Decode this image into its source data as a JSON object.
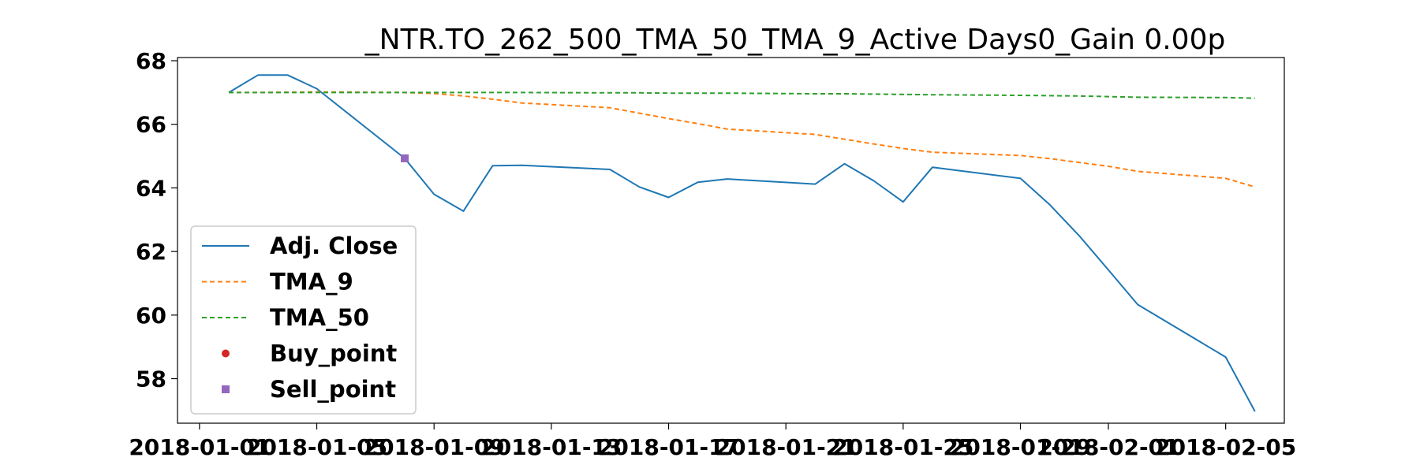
{
  "chart_data": {
    "type": "line",
    "title": "_NTR.TO_262_500_TMA_50_TMA_9_Active Days0_Gain   0.00p",
    "xlabel": "",
    "ylabel": "",
    "x_ticks": [
      "2018-01-01",
      "2018-01-05",
      "2018-01-09",
      "2018-01-13",
      "2018-01-17",
      "2018-01-21",
      "2018-01-25",
      "2018-01-29",
      "2018-02-01",
      "2018-02-05"
    ],
    "y_ticks": [
      "58",
      "60",
      "62",
      "64",
      "66",
      "68"
    ],
    "xlim": [
      "2017-12-31T06:00",
      "2018-02-07"
    ],
    "ylim": [
      56.6,
      68.1
    ],
    "grid": false,
    "legend_position": "lower-left",
    "x": [
      "2018-01-02",
      "2018-01-03",
      "2018-01-04",
      "2018-01-05",
      "2018-01-08",
      "2018-01-09",
      "2018-01-10",
      "2018-01-11",
      "2018-01-12",
      "2018-01-15",
      "2018-01-16",
      "2018-01-17",
      "2018-01-18",
      "2018-01-19",
      "2018-01-22",
      "2018-01-23",
      "2018-01-24",
      "2018-01-25",
      "2018-01-26",
      "2018-01-29",
      "2018-01-30",
      "2018-01-31",
      "2018-02-01",
      "2018-02-02",
      "2018-02-05",
      "2018-02-06"
    ],
    "series": [
      {
        "name": "Adj. Close",
        "color": "#1f77b4",
        "dash": "solid",
        "values": [
          67.0,
          67.55,
          67.55,
          67.12,
          64.93,
          63.8,
          63.27,
          64.7,
          64.71,
          64.58,
          64.03,
          63.7,
          64.18,
          64.28,
          64.12,
          64.76,
          64.22,
          63.56,
          64.65,
          64.3,
          63.47,
          62.5,
          61.42,
          60.33,
          58.68,
          56.97
        ]
      },
      {
        "name": "TMA_9",
        "color": "#ff7f0e",
        "dash": "dashed",
        "values": [
          67.0,
          67.0,
          67.01,
          67.02,
          67.0,
          66.97,
          66.89,
          66.79,
          66.67,
          66.52,
          66.35,
          66.18,
          66.02,
          65.85,
          65.68,
          65.53,
          65.38,
          65.24,
          65.12,
          65.02,
          64.92,
          64.8,
          64.68,
          64.52,
          64.3,
          64.03
        ]
      },
      {
        "name": "TMA_50",
        "color": "#2ca02c",
        "dash": "dashed",
        "values": [
          67.0,
          67.0,
          67.0,
          67.0,
          67.0,
          67.0,
          67.0,
          67.0,
          67.0,
          66.99,
          66.99,
          66.98,
          66.98,
          66.98,
          66.96,
          66.96,
          66.95,
          66.94,
          66.93,
          66.91,
          66.9,
          66.89,
          66.87,
          66.85,
          66.84,
          66.82
        ]
      }
    ],
    "buy_points": [],
    "sell_points": [
      {
        "x": "2018-01-08",
        "y": 64.93
      }
    ],
    "legend": [
      {
        "label": "Adj. Close",
        "kind": "line",
        "color": "#1f77b4",
        "dash": "solid"
      },
      {
        "label": "TMA_9",
        "kind": "line",
        "color": "#ff7f0e",
        "dash": "dashed"
      },
      {
        "label": "TMA_50",
        "kind": "line",
        "color": "#2ca02c",
        "dash": "dashed"
      },
      {
        "label": "Buy_point",
        "kind": "circle",
        "color": "#d62728"
      },
      {
        "label": "Sell_point",
        "kind": "square",
        "color": "#9467bd"
      }
    ]
  }
}
